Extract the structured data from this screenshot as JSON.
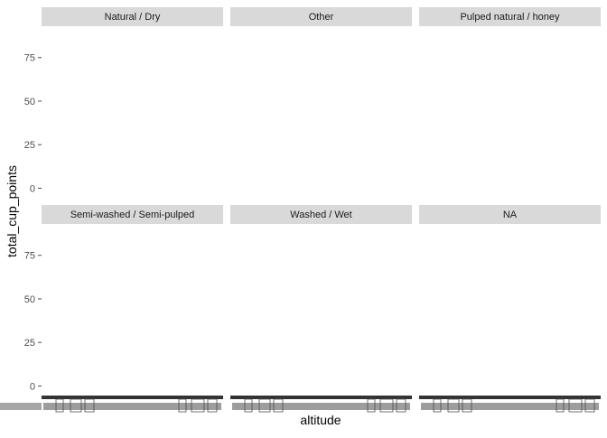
{
  "chart_data": {
    "type": "bar",
    "title": "",
    "xlabel": "altitude",
    "ylabel": "total_cup_points",
    "ylim": [
      -6,
      93
    ],
    "yticks": [
      0,
      25,
      50,
      75
    ],
    "legend": "none",
    "grid": false,
    "colors": {
      "strip_bg": "#d9d9d9",
      "panel_bg": "#ffffff",
      "tick": "#4d4d4d",
      "axis_text": "#4d4d4d",
      "title_text": "#000000",
      "strip_text": "#1a1a1a",
      "overplot": "#333333"
    },
    "facet_variable": "processing_method",
    "facets": [
      {
        "name": "Natural / Dry"
      },
      {
        "name": "Other"
      },
      {
        "name": "Pulped natural / honey"
      },
      {
        "name": "Semi-washed / Semi-pulped"
      },
      {
        "name": "Washed / Wet"
      },
      {
        "name": "NA"
      }
    ],
    "x_tick_note": "hundreds of overlapping altitude category labels; individually illegible"
  }
}
